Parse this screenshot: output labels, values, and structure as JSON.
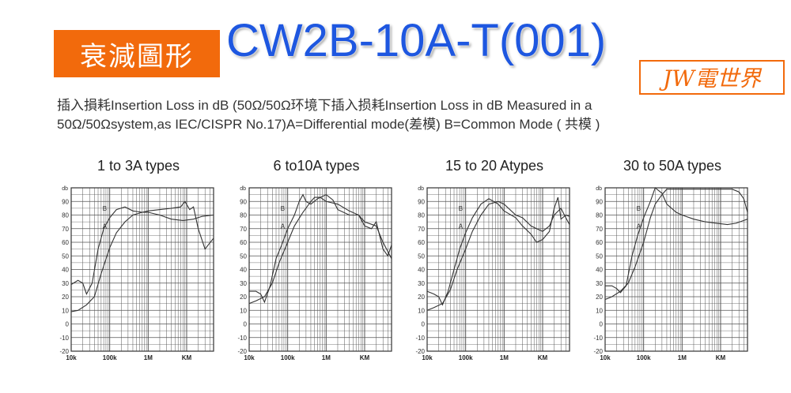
{
  "header": {
    "badge_text": "衰減圖形",
    "model": "CW2B-10A-T(001)",
    "brand": "JW電世界"
  },
  "description": {
    "line1": "插入損耗Insertion Loss in dB (50Ω/50Ω环境下插入损耗Insertion Loss in dB Measured in a",
    "line2": "50Ω/50Ωsystem,as IEC/CISPR No.17)A=Differential mode(差模) B=Common Mode ( 共模 )"
  },
  "colors": {
    "badge": "#f26a0c",
    "model": "#1e57e0",
    "grid": "#555555",
    "curve": "#333333"
  },
  "chart_data": [
    {
      "type": "line",
      "title": "1 to 3A types",
      "ylabel": "db",
      "x_scale": "log",
      "xlim": [
        10,
        50000
      ],
      "ylim": [
        -20,
        100
      ],
      "xticks": [
        {
          "x": 10,
          "label": "10k"
        },
        {
          "x": 100,
          "label": "100k"
        },
        {
          "x": 1000,
          "label": "1M"
        },
        {
          "x": 10000,
          "label": "KM"
        }
      ],
      "yticks": [
        -20,
        -10,
        0,
        10,
        20,
        30,
        40,
        50,
        60,
        70,
        80,
        90
      ],
      "series": [
        {
          "name": "A",
          "label_at": [
            90,
            72
          ],
          "points": [
            [
              10,
              9
            ],
            [
              15,
              10
            ],
            [
              25,
              14
            ],
            [
              40,
              20
            ],
            [
              60,
              37
            ],
            [
              100,
              56
            ],
            [
              150,
              67
            ],
            [
              250,
              75
            ],
            [
              400,
              80
            ],
            [
              700,
              82
            ],
            [
              1000,
              82
            ],
            [
              2000,
              80
            ],
            [
              4000,
              77
            ],
            [
              8000,
              76
            ],
            [
              15000,
              77
            ],
            [
              25000,
              79
            ],
            [
              50000,
              80
            ]
          ]
        },
        {
          "name": "B",
          "label_at": [
            90,
            85
          ],
          "points": [
            [
              10,
              29
            ],
            [
              15,
              32
            ],
            [
              20,
              30
            ],
            [
              25,
              22
            ],
            [
              35,
              30
            ],
            [
              50,
              55
            ],
            [
              70,
              70
            ],
            [
              100,
              78
            ],
            [
              150,
              84
            ],
            [
              250,
              86
            ],
            [
              400,
              83
            ],
            [
              700,
              82
            ],
            [
              1000,
              83
            ],
            [
              2000,
              84
            ],
            [
              4000,
              85
            ],
            [
              7000,
              86
            ],
            [
              9000,
              90
            ],
            [
              12000,
              84
            ],
            [
              15000,
              86
            ],
            [
              20000,
              70
            ],
            [
              30000,
              55
            ],
            [
              50000,
              63
            ]
          ]
        }
      ]
    },
    {
      "type": "line",
      "title": "6 to10A types",
      "ylabel": "db",
      "x_scale": "log",
      "xlim": [
        10,
        50000
      ],
      "ylim": [
        -20,
        100
      ],
      "xticks": [
        {
          "x": 10,
          "label": "10k"
        },
        {
          "x": 100,
          "label": "100k"
        },
        {
          "x": 1000,
          "label": "1M"
        },
        {
          "x": 10000,
          "label": "KM"
        }
      ],
      "yticks": [
        -20,
        -10,
        0,
        10,
        20,
        30,
        40,
        50,
        60,
        70,
        80,
        90
      ],
      "series": [
        {
          "name": "A",
          "label_at": [
            90,
            72
          ],
          "points": [
            [
              10,
              15
            ],
            [
              15,
              17
            ],
            [
              25,
              20
            ],
            [
              40,
              30
            ],
            [
              60,
              45
            ],
            [
              100,
              60
            ],
            [
              150,
              72
            ],
            [
              250,
              82
            ],
            [
              400,
              90
            ],
            [
              500,
              93
            ],
            [
              700,
              93
            ],
            [
              1000,
              90
            ],
            [
              2000,
              88
            ],
            [
              4000,
              83
            ],
            [
              7000,
              80
            ],
            [
              10000,
              72
            ],
            [
              15000,
              70
            ],
            [
              20000,
              75
            ],
            [
              30000,
              55
            ],
            [
              40000,
              50
            ],
            [
              50000,
              58
            ]
          ]
        },
        {
          "name": "B",
          "label_at": [
            90,
            85
          ],
          "points": [
            [
              10,
              24
            ],
            [
              15,
              24
            ],
            [
              20,
              22
            ],
            [
              25,
              16
            ],
            [
              35,
              28
            ],
            [
              50,
              48
            ],
            [
              70,
              58
            ],
            [
              100,
              70
            ],
            [
              150,
              80
            ],
            [
              200,
              90
            ],
            [
              250,
              95
            ],
            [
              300,
              90
            ],
            [
              400,
              88
            ],
            [
              600,
              92
            ],
            [
              1000,
              95
            ],
            [
              1500,
              91
            ],
            [
              2000,
              84
            ],
            [
              4000,
              80
            ],
            [
              7000,
              80
            ],
            [
              10000,
              75
            ],
            [
              20000,
              72
            ],
            [
              30000,
              60
            ],
            [
              50000,
              48
            ]
          ]
        }
      ]
    },
    {
      "type": "line",
      "title": "15 to 20 Atypes",
      "ylabel": "db",
      "x_scale": "log",
      "xlim": [
        10,
        50000
      ],
      "ylim": [
        -20,
        100
      ],
      "xticks": [
        {
          "x": 10,
          "label": "10k"
        },
        {
          "x": 100,
          "label": "100k"
        },
        {
          "x": 1000,
          "label": "1M"
        },
        {
          "x": 10000,
          "label": "KM"
        }
      ],
      "yticks": [
        -20,
        -10,
        0,
        10,
        20,
        30,
        40,
        50,
        60,
        70,
        80,
        90
      ],
      "series": [
        {
          "name": "A",
          "label_at": [
            90,
            72
          ],
          "points": [
            [
              10,
              10
            ],
            [
              15,
              12
            ],
            [
              25,
              15
            ],
            [
              40,
              25
            ],
            [
              60,
              40
            ],
            [
              100,
              55
            ],
            [
              150,
              68
            ],
            [
              250,
              80
            ],
            [
              400,
              88
            ],
            [
              700,
              90
            ],
            [
              1000,
              88
            ],
            [
              2000,
              80
            ],
            [
              3000,
              78
            ],
            [
              5000,
              72
            ],
            [
              7000,
              70
            ],
            [
              10000,
              68
            ],
            [
              15000,
              72
            ],
            [
              20000,
              80
            ],
            [
              30000,
              85
            ],
            [
              40000,
              78
            ],
            [
              50000,
              73
            ]
          ]
        },
        {
          "name": "B",
          "label_at": [
            90,
            85
          ],
          "points": [
            [
              10,
              24
            ],
            [
              15,
              22
            ],
            [
              20,
              20
            ],
            [
              25,
              14
            ],
            [
              35,
              24
            ],
            [
              50,
              40
            ],
            [
              70,
              55
            ],
            [
              100,
              67
            ],
            [
              150,
              78
            ],
            [
              250,
              88
            ],
            [
              400,
              92
            ],
            [
              700,
              88
            ],
            [
              1000,
              83
            ],
            [
              2000,
              78
            ],
            [
              3000,
              72
            ],
            [
              5000,
              66
            ],
            [
              7000,
              60
            ],
            [
              10000,
              62
            ],
            [
              15000,
              68
            ],
            [
              20000,
              85
            ],
            [
              25000,
              93
            ],
            [
              30000,
              77
            ],
            [
              40000,
              80
            ],
            [
              50000,
              79
            ]
          ]
        }
      ]
    },
    {
      "type": "line",
      "title": "30 to 50A types",
      "ylabel": "db",
      "x_scale": "log",
      "xlim": [
        10,
        50000
      ],
      "ylim": [
        -20,
        100
      ],
      "xticks": [
        {
          "x": 10,
          "label": "10k"
        },
        {
          "x": 100,
          "label": "100k"
        },
        {
          "x": 1000,
          "label": "1M"
        },
        {
          "x": 10000,
          "label": "KM"
        }
      ],
      "yticks": [
        -20,
        -10,
        0,
        10,
        20,
        30,
        40,
        50,
        60,
        70,
        80,
        90
      ],
      "series": [
        {
          "name": "A",
          "label_at": [
            90,
            72
          ],
          "points": [
            [
              10,
              18
            ],
            [
              15,
              20
            ],
            [
              25,
              24
            ],
            [
              40,
              30
            ],
            [
              60,
              42
            ],
            [
              100,
              60
            ],
            [
              150,
              78
            ],
            [
              200,
              88
            ],
            [
              300,
              95
            ],
            [
              400,
              99
            ],
            [
              700,
              99
            ],
            [
              1000,
              99
            ],
            [
              3000,
              99
            ],
            [
              10000,
              99
            ],
            [
              20000,
              99
            ],
            [
              30000,
              97
            ],
            [
              40000,
              92
            ],
            [
              50000,
              82
            ]
          ]
        },
        {
          "name": "B",
          "label_at": [
            90,
            85
          ],
          "points": [
            [
              10,
              28
            ],
            [
              15,
              28
            ],
            [
              20,
              26
            ],
            [
              25,
              23
            ],
            [
              35,
              28
            ],
            [
              50,
              50
            ],
            [
              70,
              65
            ],
            [
              100,
              78
            ],
            [
              150,
              90
            ],
            [
              200,
              100
            ],
            [
              300,
              96
            ],
            [
              400,
              88
            ],
            [
              700,
              82
            ],
            [
              1000,
              80
            ],
            [
              2000,
              77
            ],
            [
              4000,
              75
            ],
            [
              8000,
              74
            ],
            [
              15000,
              73
            ],
            [
              25000,
              74
            ],
            [
              40000,
              76
            ],
            [
              50000,
              77
            ]
          ]
        }
      ]
    }
  ]
}
